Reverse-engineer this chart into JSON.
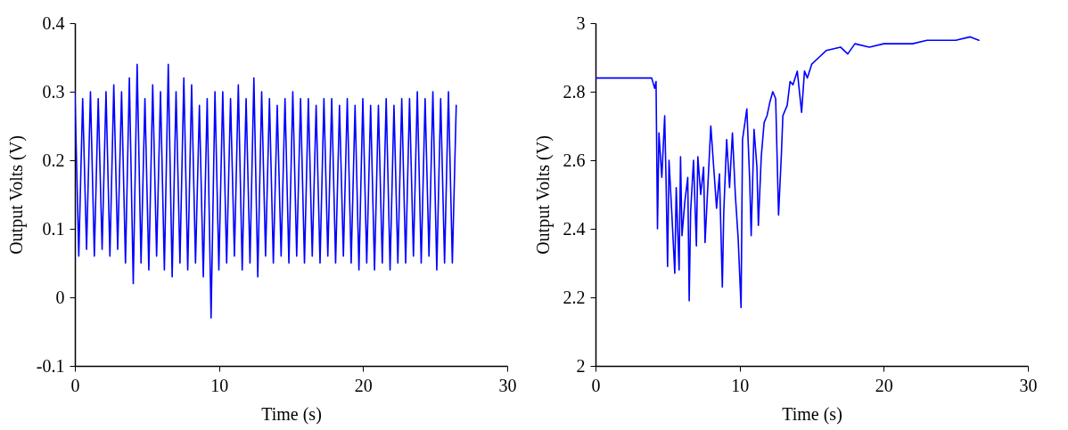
{
  "chart_data": [
    {
      "type": "line",
      "xlabel": "Time (s)",
      "ylabel": "Output Volts (V)",
      "xlim": [
        0,
        30
      ],
      "xticks": [
        0,
        10,
        20,
        30
      ],
      "ylim": [
        -0.1,
        0.4
      ],
      "yticks": [
        -0.1,
        0,
        0.1,
        0.2,
        0.3,
        0.4
      ],
      "x": [
        0,
        0.27,
        0.54,
        0.81,
        1.08,
        1.35,
        1.62,
        1.89,
        2.16,
        2.43,
        2.7,
        2.97,
        3.24,
        3.51,
        3.78,
        4.05,
        4.32,
        4.59,
        4.86,
        5.13,
        5.4,
        5.67,
        5.94,
        6.21,
        6.48,
        6.75,
        7.02,
        7.29,
        7.56,
        7.83,
        8.1,
        8.37,
        8.64,
        8.91,
        9.18,
        9.45,
        9.72,
        9.99,
        10.26,
        10.53,
        10.8,
        11.07,
        11.34,
        11.61,
        11.88,
        12.15,
        12.42,
        12.69,
        12.96,
        13.23,
        13.5,
        13.77,
        14.04,
        14.31,
        14.58,
        14.85,
        15.12,
        15.39,
        15.66,
        15.93,
        16.2,
        16.47,
        16.74,
        17.01,
        17.28,
        17.55,
        17.82,
        18.09,
        18.36,
        18.63,
        18.9,
        19.17,
        19.44,
        19.71,
        19.98,
        20.25,
        20.52,
        20.79,
        21.06,
        21.33,
        21.6,
        21.87,
        22.14,
        22.41,
        22.68,
        22.95,
        23.22,
        23.49,
        23.76,
        24.03,
        24.3,
        24.57,
        24.84,
        25.11,
        25.38,
        25.65,
        25.92,
        26.19,
        26.46
      ],
      "series": [
        {
          "color": "#0000ff",
          "values": [
            0.3,
            0.06,
            0.29,
            0.07,
            0.3,
            0.06,
            0.29,
            0.07,
            0.3,
            0.06,
            0.31,
            0.07,
            0.3,
            0.05,
            0.32,
            0.02,
            0.34,
            0.05,
            0.29,
            0.04,
            0.31,
            0.06,
            0.3,
            0.04,
            0.34,
            0.03,
            0.3,
            0.05,
            0.32,
            0.04,
            0.31,
            0.05,
            0.28,
            0.03,
            0.29,
            -0.03,
            0.3,
            0.04,
            0.3,
            0.05,
            0.29,
            0.06,
            0.31,
            0.04,
            0.29,
            0.05,
            0.32,
            0.03,
            0.3,
            0.06,
            0.29,
            0.05,
            0.28,
            0.06,
            0.29,
            0.05,
            0.3,
            0.06,
            0.29,
            0.05,
            0.29,
            0.06,
            0.28,
            0.05,
            0.29,
            0.06,
            0.29,
            0.05,
            0.28,
            0.06,
            0.29,
            0.05,
            0.28,
            0.04,
            0.29,
            0.05,
            0.28,
            0.04,
            0.28,
            0.05,
            0.29,
            0.04,
            0.28,
            0.05,
            0.29,
            0.05,
            0.29,
            0.06,
            0.3,
            0.05,
            0.29,
            0.06,
            0.3,
            0.04,
            0.29,
            0.05,
            0.3,
            0.05,
            0.28
          ]
        }
      ]
    },
    {
      "type": "line",
      "xlabel": "Time (s)",
      "ylabel": "Output Volts (V)",
      "xlim": [
        0,
        30
      ],
      "xticks": [
        0,
        10,
        20,
        30
      ],
      "ylim": [
        2,
        3
      ],
      "yticks": [
        2,
        2.2,
        2.4,
        2.6,
        2.8,
        3
      ],
      "x": [
        0,
        3.9,
        4.1,
        4.2,
        4.3,
        4.4,
        4.6,
        4.8,
        4.9,
        5.0,
        5.1,
        5.3,
        5.5,
        5.6,
        5.8,
        5.9,
        6.0,
        6.2,
        6.4,
        6.5,
        6.6,
        6.8,
        7.0,
        7.1,
        7.3,
        7.5,
        7.6,
        7.8,
        8.0,
        8.2,
        8.4,
        8.6,
        8.8,
        8.9,
        9.1,
        9.3,
        9.5,
        9.7,
        9.9,
        10.1,
        10.2,
        10.5,
        10.7,
        10.8,
        11.0,
        11.2,
        11.3,
        11.5,
        11.7,
        11.9,
        12.1,
        12.3,
        12.5,
        12.7,
        12.9,
        13.0,
        13.3,
        13.5,
        13.7,
        14.0,
        14.3,
        14.5,
        14.7,
        15.0,
        15.5,
        16,
        17,
        17.5,
        18,
        19,
        20,
        21,
        22,
        23,
        24,
        25,
        26,
        26.6
      ],
      "series": [
        {
          "color": "#0000ff",
          "values": [
            2.84,
            2.84,
            2.81,
            2.83,
            2.4,
            2.68,
            2.55,
            2.73,
            2.53,
            2.29,
            2.6,
            2.44,
            2.27,
            2.52,
            2.28,
            2.61,
            2.38,
            2.48,
            2.55,
            2.19,
            2.45,
            2.6,
            2.35,
            2.61,
            2.5,
            2.58,
            2.36,
            2.53,
            2.7,
            2.58,
            2.46,
            2.56,
            2.23,
            2.45,
            2.66,
            2.52,
            2.68,
            2.5,
            2.37,
            2.17,
            2.66,
            2.75,
            2.54,
            2.38,
            2.69,
            2.58,
            2.41,
            2.61,
            2.71,
            2.73,
            2.77,
            2.8,
            2.78,
            2.44,
            2.62,
            2.73,
            2.76,
            2.83,
            2.82,
            2.86,
            2.74,
            2.86,
            2.84,
            2.88,
            2.9,
            2.92,
            2.93,
            2.91,
            2.94,
            2.93,
            2.94,
            2.94,
            2.94,
            2.95,
            2.95,
            2.95,
            2.96,
            2.95
          ]
        }
      ]
    }
  ]
}
